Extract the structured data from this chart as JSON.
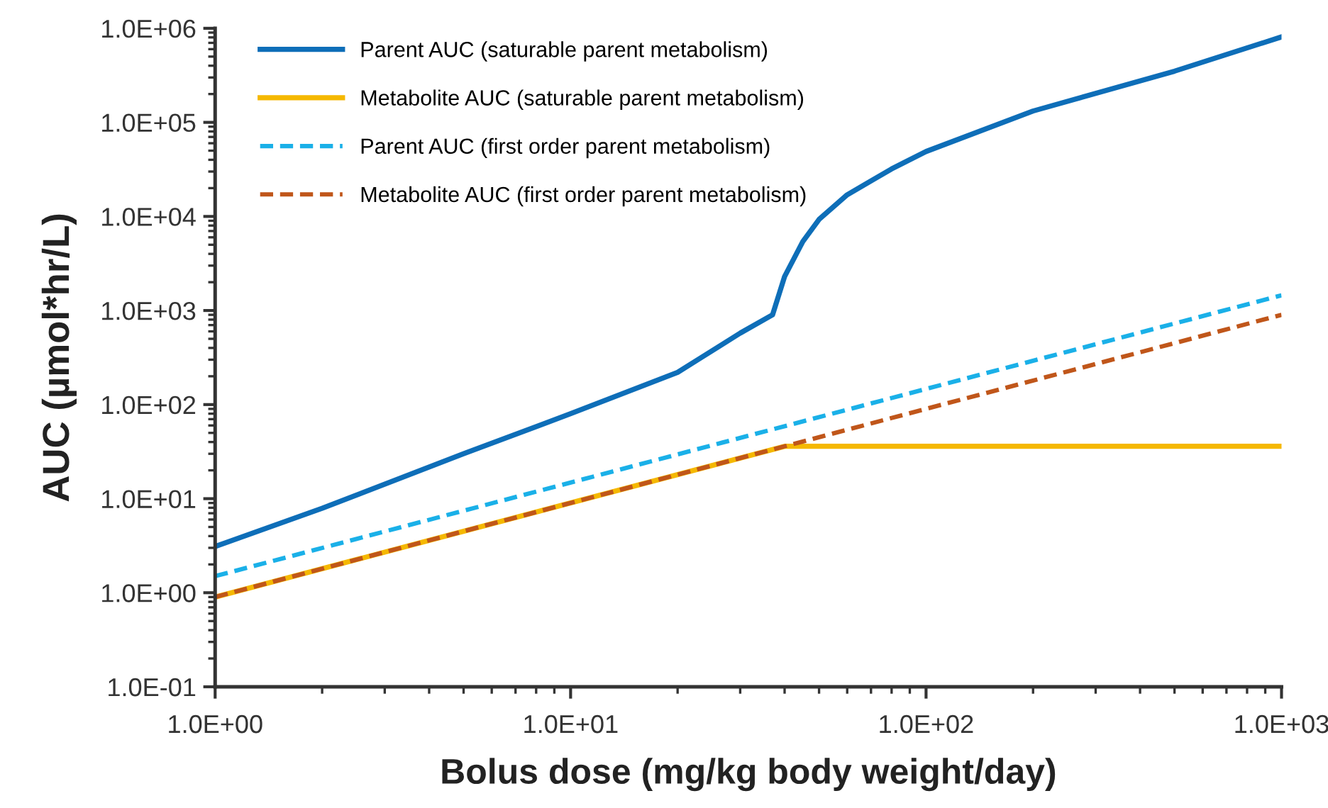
{
  "chart_data": {
    "type": "line",
    "xlabel": "Bolus dose (mg/kg body weight/day)",
    "ylabel": "AUC (µmol*hr/L)",
    "log": "xy",
    "grid": false,
    "legend": "top left",
    "xlim": [
      1,
      1000
    ],
    "ylim": [
      0.1,
      1000000
    ],
    "xticks": [
      {
        "value": 1,
        "label": "1.0E+00"
      },
      {
        "value": 10,
        "label": "1.0E+01"
      },
      {
        "value": 100,
        "label": "1.0E+02"
      },
      {
        "value": 1000,
        "label": "1.0E+03"
      }
    ],
    "yticks": [
      {
        "value": 0.1,
        "label": "1.0E-01"
      },
      {
        "value": 1,
        "label": "1.0E+00"
      },
      {
        "value": 10,
        "label": "1.0E+01"
      },
      {
        "value": 100,
        "label": "1.0E+02"
      },
      {
        "value": 1000,
        "label": "1.0E+03"
      },
      {
        "value": 10000,
        "label": "1.0E+04"
      },
      {
        "value": 100000,
        "label": "1.0E+05"
      },
      {
        "value": 1000000,
        "label": "1.0E+06"
      }
    ],
    "series": [
      {
        "name": "Parent AUC (saturable parent metabolism)",
        "color": "#0e6eb8",
        "line_style": "solid",
        "x": [
          1,
          2,
          5,
          10,
          20,
          30,
          37,
          40,
          45,
          50,
          60,
          80,
          100,
          200,
          500,
          1000
        ],
        "values": [
          3.1,
          7.9,
          30,
          80,
          220,
          575,
          900,
          2300,
          5400,
          9300,
          17000,
          32000,
          49000,
          132000,
          350000,
          810000
        ]
      },
      {
        "name": "Metabolite AUC (saturable parent metabolism)",
        "color": "#f5b800",
        "line_style": "solid",
        "x": [
          1,
          40,
          1000
        ],
        "values": [
          0.9,
          36,
          36
        ]
      },
      {
        "name": "Parent AUC (first order parent metabolism)",
        "color": "#1ab0e8",
        "line_style": "dashed",
        "x": [
          1,
          1000
        ],
        "values": [
          1.5,
          1450
        ]
      },
      {
        "name": "Metabolite AUC (first order parent metabolism)",
        "color": "#c0561a",
        "line_style": "dashed",
        "x": [
          1,
          1000
        ],
        "values": [
          0.9,
          900
        ]
      }
    ]
  }
}
